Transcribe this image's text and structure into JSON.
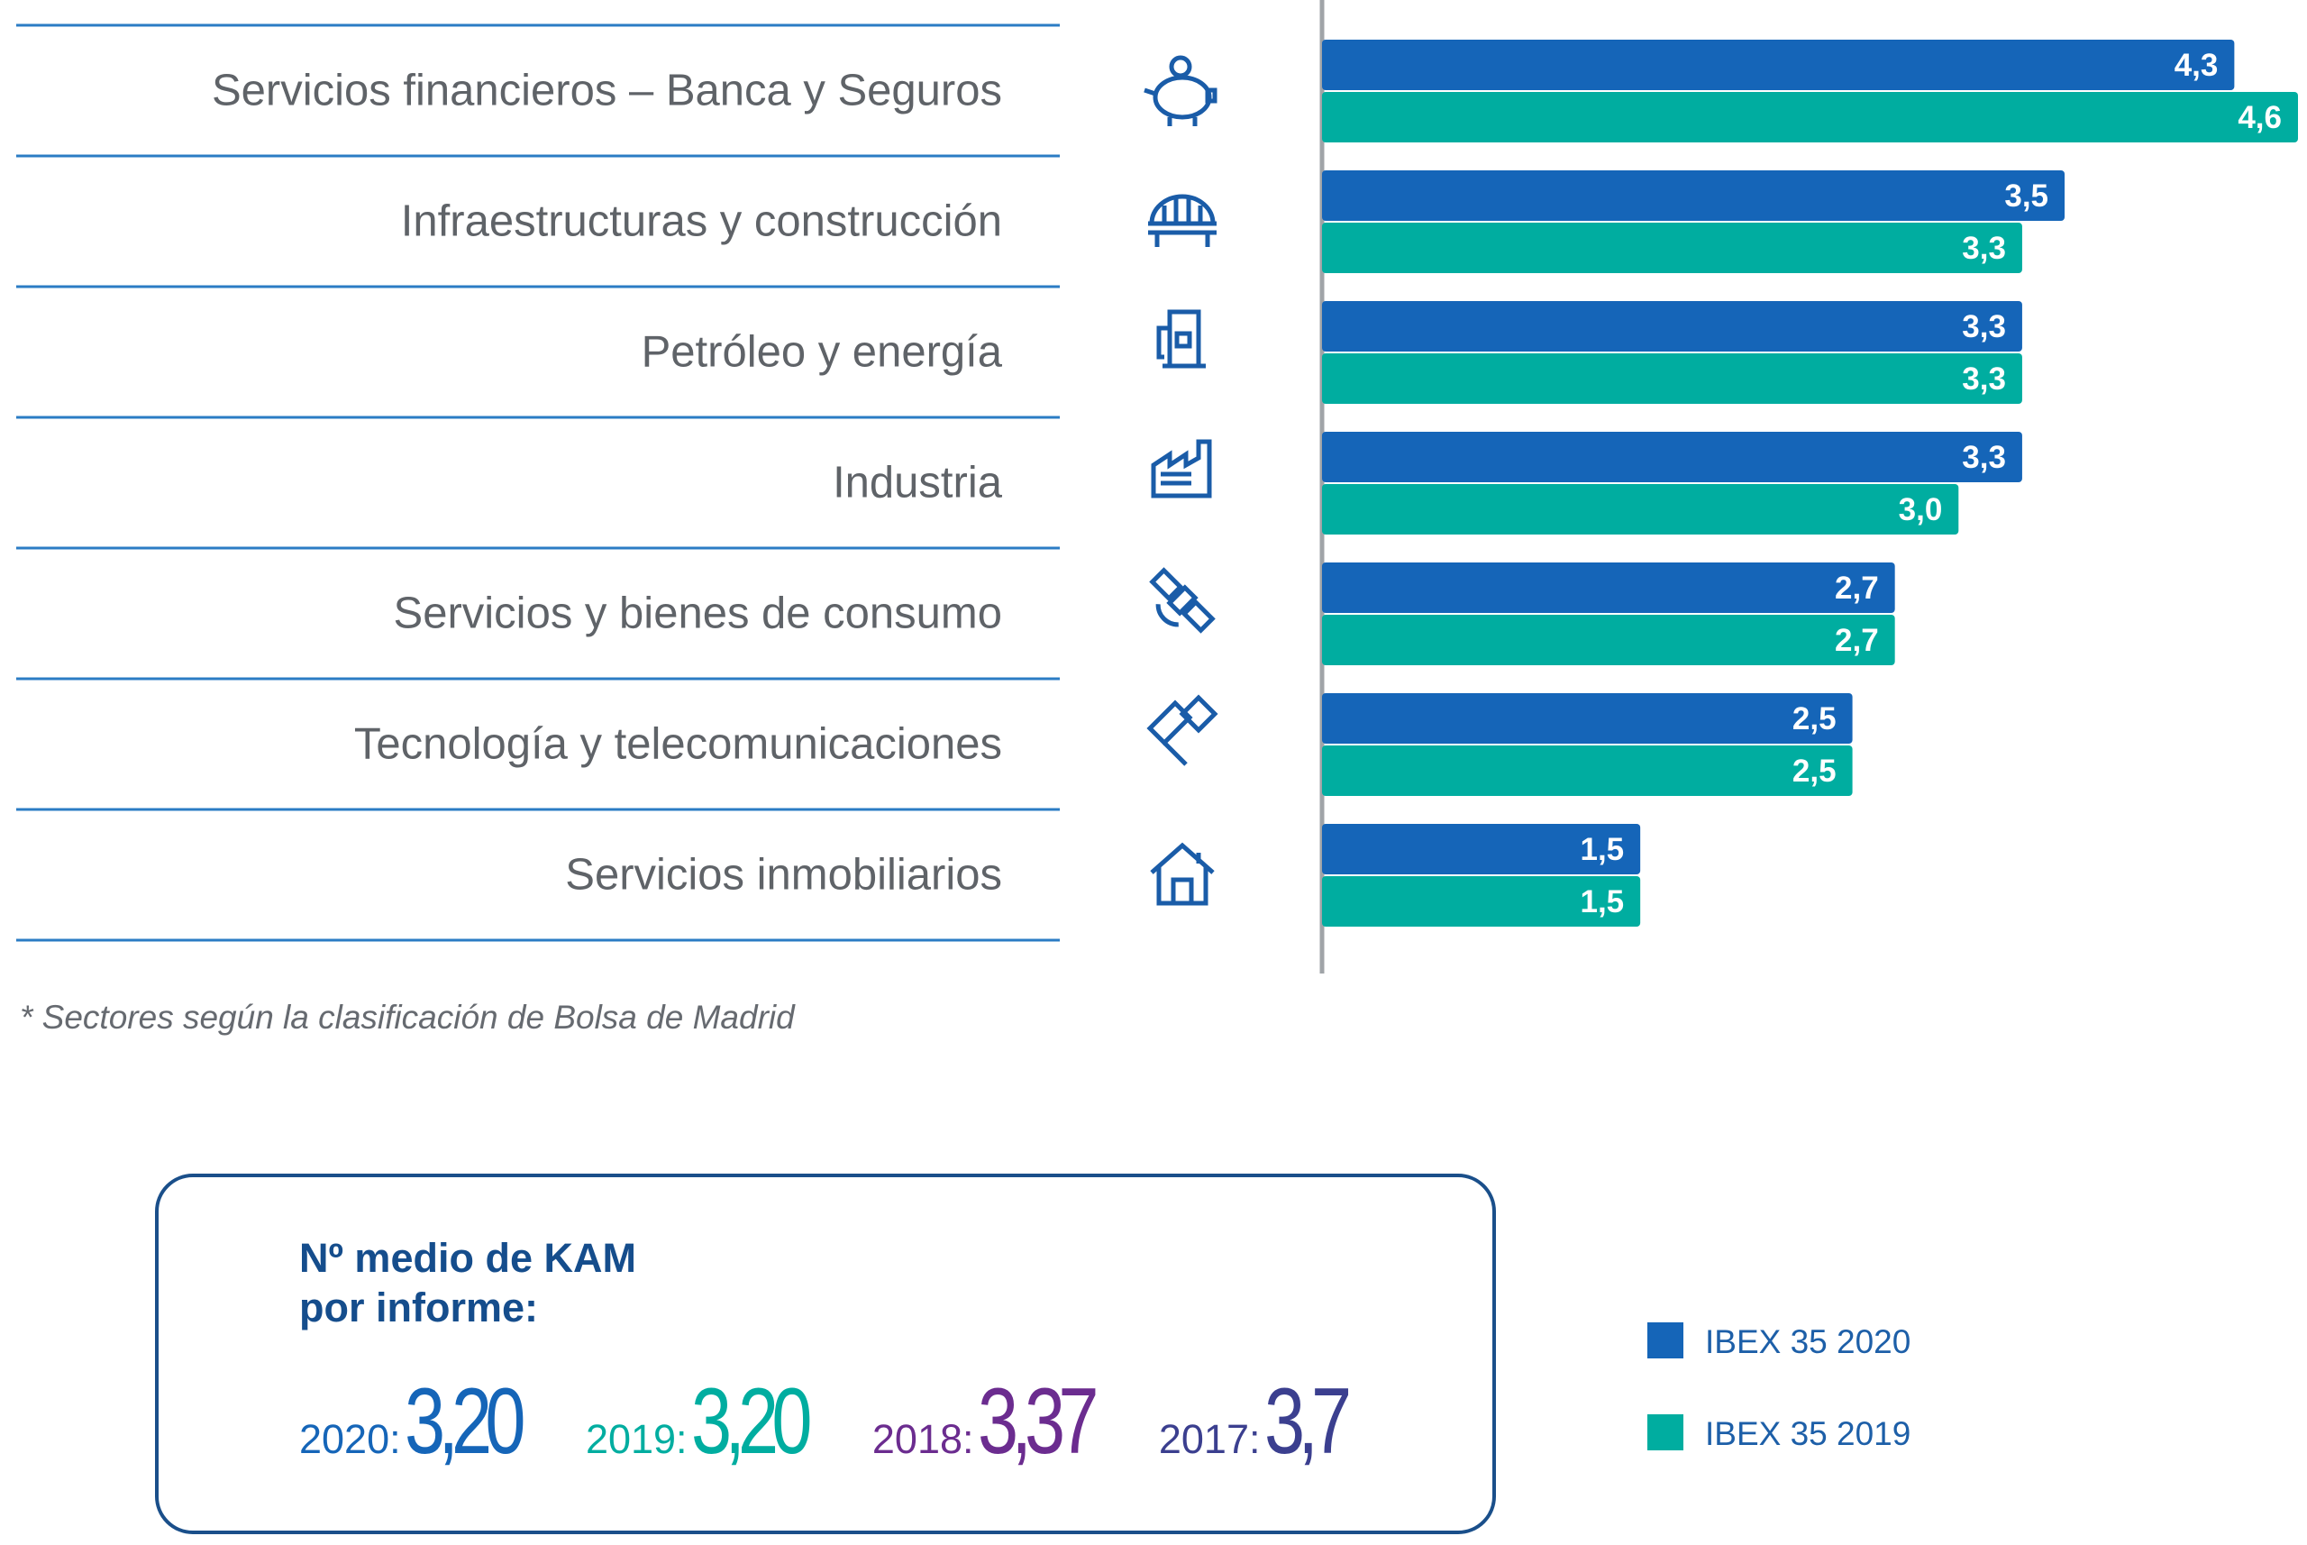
{
  "chart_data": {
    "type": "bar",
    "orientation": "horizontal",
    "categories": [
      "Servicios financieros – Banca y Seguros",
      "Infraestructuras y construcción",
      "Petróleo y energía",
      "Industria",
      "Servicios y bienes de consumo",
      "Tecnología y telecomunicaciones",
      "Servicios inmobiliarios"
    ],
    "category_icons": [
      "piggy-bank-icon",
      "bridge-icon",
      "fuel-pump-icon",
      "factory-icon",
      "satellite-icon",
      "handshake-icon",
      "house-icon"
    ],
    "series": [
      {
        "name": "IBEX 35 2020",
        "color": "#1565b8",
        "values": [
          4.3,
          3.5,
          3.3,
          3.3,
          2.7,
          2.5,
          1.5
        ]
      },
      {
        "name": "IBEX 35 2019",
        "color": "#00ada0",
        "values": [
          4.6,
          3.3,
          3.3,
          3.0,
          2.7,
          2.5,
          1.5
        ]
      }
    ],
    "value_labels": [
      [
        "4,3",
        "3,5",
        "3,3",
        "3,3",
        "2,7",
        "2,5",
        "1,5"
      ],
      [
        "4,6",
        "3,3",
        "3,3",
        "3,0",
        "2,7",
        "2,5",
        "1,5"
      ]
    ],
    "xlim": [
      0,
      4.6
    ],
    "legend": "bottom-right",
    "grid": false
  },
  "footnote": "* Sectores según la clasificación de Bolsa de Madrid",
  "kam": {
    "title_line1": "Nº medio de KAM",
    "title_line2": "por informe:",
    "items": [
      {
        "year": "2020:",
        "value": "3,20",
        "color": "#1565b8"
      },
      {
        "year": "2019:",
        "value": "3,20",
        "color": "#00ada0"
      },
      {
        "year": "2018:",
        "value": "3,37",
        "color": "#6b2c8f"
      },
      {
        "year": "2017:",
        "value": "3,7",
        "color": "#3b3f8f"
      }
    ]
  },
  "legend": {
    "items": [
      {
        "label": "IBEX 35 2020",
        "color": "#1565b8"
      },
      {
        "label": "IBEX 35 2019",
        "color": "#00ada0"
      }
    ]
  },
  "colors": {
    "divider": "#2b7cc4",
    "axis": "#a0a4a8",
    "icon": "#1a5ca8"
  }
}
